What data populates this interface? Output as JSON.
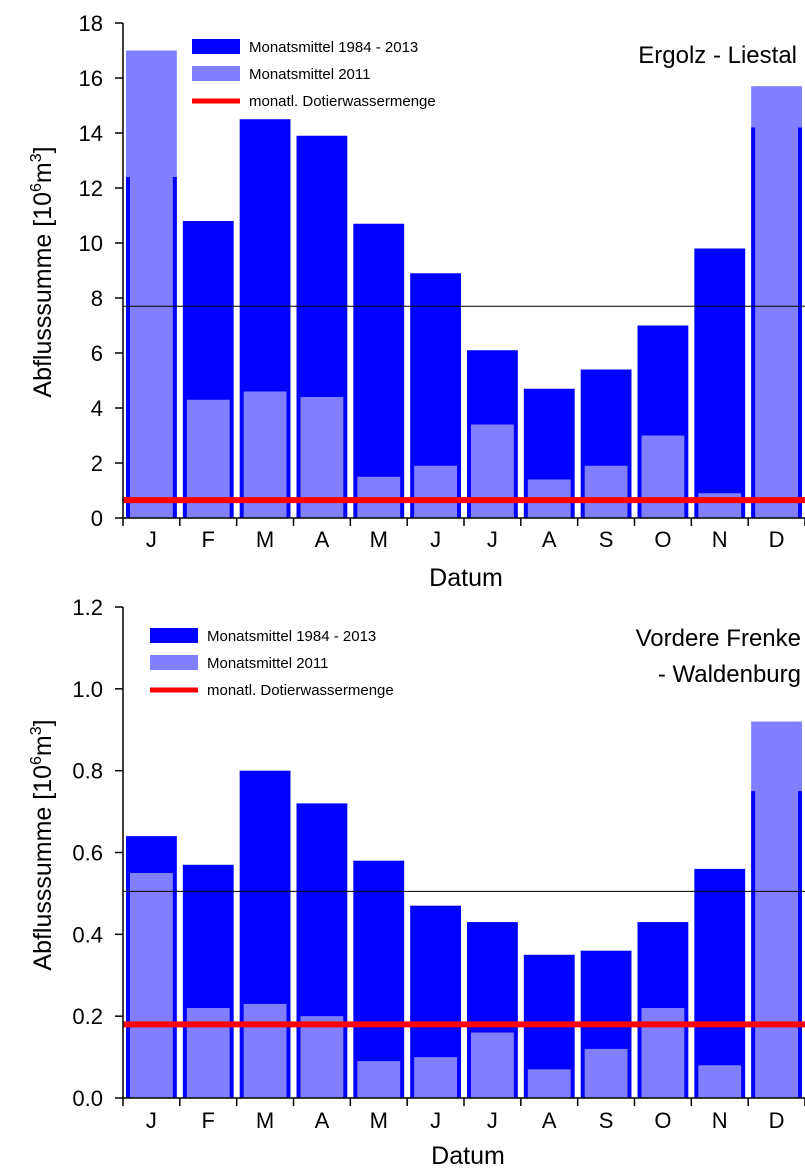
{
  "chart_data": [
    {
      "type": "bar",
      "title": "Ergolz - Liestal",
      "xlabel": "Datum",
      "ylabel_main": "Abflusssumme [10",
      "ylabel_sup1": "6",
      "ylabel_mid": "m",
      "ylabel_sup2": "3",
      "ylabel_end": "]",
      "ylim": [
        0,
        18
      ],
      "yticks": [
        "0",
        "2",
        "4",
        "6",
        "8",
        "10",
        "12",
        "14",
        "16",
        "18"
      ],
      "categories": [
        "J",
        "F",
        "M",
        "A",
        "M",
        "J",
        "J",
        "A",
        "S",
        "O",
        "N",
        "D"
      ],
      "series": [
        {
          "name": "Monatsmittel 1984 - 2013",
          "color": "#0000ff",
          "values": [
            12.4,
            10.8,
            14.5,
            13.9,
            10.7,
            8.9,
            6.1,
            4.7,
            5.4,
            7.0,
            9.8,
            14.2
          ]
        },
        {
          "name": "Monatsmittel 2011",
          "color": "#8080ff",
          "values": [
            17.0,
            4.3,
            4.6,
            4.4,
            1.5,
            1.9,
            3.4,
            1.4,
            1.9,
            3.0,
            0.9,
            15.7
          ]
        }
      ],
      "dotier": {
        "name": "monatl. Dotierwassermenge",
        "color": "#ff0000",
        "value": 0.65
      },
      "reference_line": 7.7,
      "legend_position": "top-left"
    },
    {
      "type": "bar",
      "title_line1": "Vordere Frenke",
      "title_line2": "- Waldenburg",
      "xlabel": "Datum",
      "ylabel_main": "Abflusssumme [10",
      "ylabel_sup1": "6",
      "ylabel_mid": "m",
      "ylabel_sup2": "3",
      "ylabel_end": "]",
      "ylim": [
        0,
        1.2
      ],
      "yticks": [
        "0.0",
        "0.2",
        "0.4",
        "0.6",
        "0.8",
        "1.0",
        "1.2"
      ],
      "categories": [
        "J",
        "F",
        "M",
        "A",
        "M",
        "J",
        "J",
        "A",
        "S",
        "O",
        "N",
        "D"
      ],
      "series": [
        {
          "name": "Monatsmittel 1984 - 2013",
          "color": "#0000ff",
          "values": [
            0.64,
            0.57,
            0.8,
            0.72,
            0.58,
            0.47,
            0.43,
            0.35,
            0.36,
            0.43,
            0.56,
            0.75
          ]
        },
        {
          "name": "Monatsmittel 2011",
          "color": "#8080ff",
          "values": [
            0.55,
            0.22,
            0.23,
            0.2,
            0.09,
            0.1,
            0.16,
            0.07,
            0.12,
            0.22,
            0.08,
            0.92
          ]
        }
      ],
      "dotier": {
        "name": "monatl. Dotierwassermenge",
        "color": "#ff0000",
        "value": 0.18
      },
      "reference_line": 0.505,
      "legend_position": "top-left"
    }
  ]
}
